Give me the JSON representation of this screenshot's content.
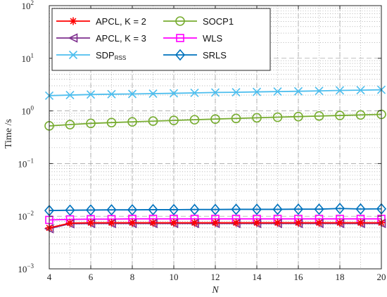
{
  "chart_data": {
    "type": "line",
    "xlabel": "N",
    "ylabel": "Time /s",
    "xlim": [
      4,
      20
    ],
    "ylim": [
      0.001,
      100
    ],
    "y_scale": "log",
    "grid": true,
    "legend_position": "top-left",
    "x_ticks": [
      "4",
      "6",
      "8",
      "10",
      "12",
      "14",
      "16",
      "18",
      "20"
    ],
    "y_ticks": [
      {
        "value": 0.001,
        "base": "10",
        "exp": "−3"
      },
      {
        "value": 0.01,
        "base": "10",
        "exp": "−2"
      },
      {
        "value": 0.1,
        "base": "10",
        "exp": "−1"
      },
      {
        "value": 1,
        "base": "10",
        "exp": "0"
      },
      {
        "value": 10,
        "base": "10",
        "exp": "1"
      },
      {
        "value": 100,
        "base": "10",
        "exp": "2"
      }
    ],
    "x": [
      4,
      5,
      6,
      7,
      8,
      9,
      10,
      11,
      12,
      13,
      14,
      15,
      16,
      17,
      18,
      19,
      20
    ],
    "series": [
      {
        "name": "APCL, K = 2",
        "color": "#ff0000",
        "marker": "asterisk",
        "values": [
          0.006,
          0.0074,
          0.0075,
          0.0075,
          0.0075,
          0.0075,
          0.0075,
          0.0075,
          0.0075,
          0.0075,
          0.0075,
          0.0075,
          0.0075,
          0.0075,
          0.0075,
          0.0075,
          0.0075
        ]
      },
      {
        "name": "APCL, K = 3",
        "color": "#7e2f8e",
        "marker": "triangle-left",
        "values": [
          0.0058,
          0.0072,
          0.0073,
          0.0073,
          0.0073,
          0.0073,
          0.0073,
          0.0073,
          0.0073,
          0.0073,
          0.0073,
          0.0073,
          0.0073,
          0.0073,
          0.0073,
          0.0073,
          0.0073
        ]
      },
      {
        "name": "SDP",
        "name_subscript": "RSS",
        "color": "#4dbeee",
        "marker": "x",
        "values": [
          1.95,
          2.0,
          2.05,
          2.08,
          2.1,
          2.13,
          2.16,
          2.2,
          2.24,
          2.26,
          2.3,
          2.33,
          2.36,
          2.4,
          2.45,
          2.48,
          2.52
        ]
      },
      {
        "name": "SOCP1",
        "color": "#77ac30",
        "marker": "circle",
        "values": [
          0.52,
          0.55,
          0.58,
          0.6,
          0.62,
          0.64,
          0.66,
          0.68,
          0.7,
          0.72,
          0.74,
          0.76,
          0.78,
          0.8,
          0.82,
          0.84,
          0.86
        ]
      },
      {
        "name": "WLS",
        "color": "#ff00ff",
        "marker": "square",
        "values": [
          0.0085,
          0.0087,
          0.0088,
          0.0088,
          0.0089,
          0.0089,
          0.0089,
          0.0089,
          0.0089,
          0.0089,
          0.0089,
          0.0089,
          0.0089,
          0.0089,
          0.0089,
          0.0089,
          0.0089
        ]
      },
      {
        "name": "SRLS",
        "color": "#0072bd",
        "marker": "diamond",
        "values": [
          0.0128,
          0.013,
          0.0131,
          0.0132,
          0.0132,
          0.0133,
          0.0133,
          0.0134,
          0.0134,
          0.0135,
          0.0135,
          0.0135,
          0.0136,
          0.0136,
          0.014,
          0.0137,
          0.0138
        ]
      }
    ]
  }
}
